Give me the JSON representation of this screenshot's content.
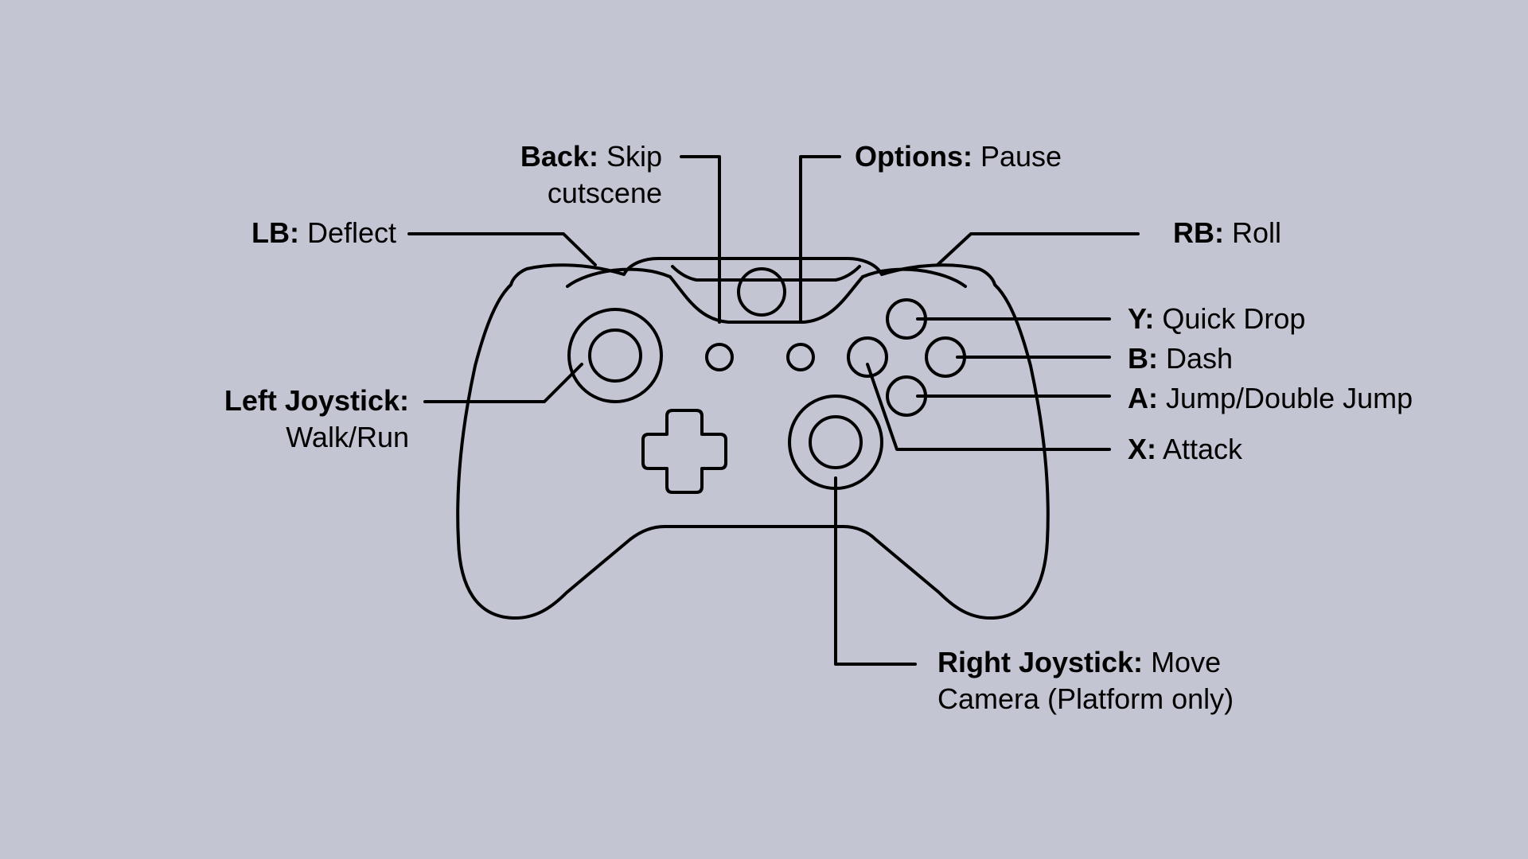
{
  "labels": {
    "back": {
      "key": "Back:",
      "action_line1": "Skip",
      "action_line2": "cutscene"
    },
    "options": {
      "key": "Options:",
      "action": "Pause"
    },
    "lb": {
      "key": "LB:",
      "action": "Deflect"
    },
    "rb": {
      "key": "RB:",
      "action": "Roll"
    },
    "y": {
      "key": "Y:",
      "action": "Quick Drop"
    },
    "b": {
      "key": "B:",
      "action": "Dash"
    },
    "a": {
      "key": "A:",
      "action": "Jump/Double Jump"
    },
    "x": {
      "key": "X:",
      "action": "Attack"
    },
    "left_joystick": {
      "key": "Left Joystick:",
      "action": "Walk/Run"
    },
    "right_joystick": {
      "key": "Right Joystick:",
      "action_line1": "Move",
      "action_line2": "Camera (Platform only)"
    }
  },
  "colors": {
    "background": "#c3c5d2",
    "stroke": "#000000"
  }
}
